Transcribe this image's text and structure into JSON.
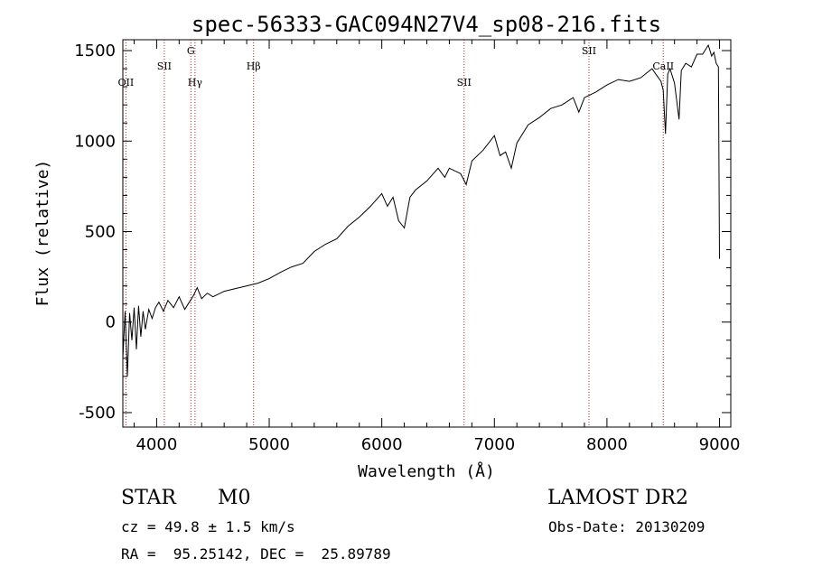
{
  "chart_data": {
    "type": "line",
    "title": "spec-56333-GAC094N27V4_sp08-216.fits",
    "xlabel": "Wavelength (Å)",
    "ylabel": "Flux (relative)",
    "xlim": [
      3700,
      9100
    ],
    "ylim": [
      -580,
      1560
    ],
    "xticks": [
      4000,
      5000,
      6000,
      7000,
      8000,
      9000
    ],
    "yticks": [
      -500,
      0,
      500,
      1000,
      1500
    ],
    "grid": false,
    "line_color": "#000000",
    "marker_color": "#b22222",
    "series": [
      {
        "x": [
          3700,
          3720,
          3740,
          3760,
          3780,
          3800,
          3820,
          3840,
          3860,
          3880,
          3900,
          3930,
          3960,
          3990,
          4020,
          4060,
          4100,
          4150,
          4200,
          4250,
          4300,
          4330,
          4360,
          4400,
          4450,
          4500,
          4600,
          4700,
          4800,
          4900,
          5000,
          5100,
          5200,
          5300,
          5400,
          5500,
          5600,
          5700,
          5800,
          5900,
          6000,
          6050,
          6100,
          6150,
          6200,
          6250,
          6300,
          6400,
          6500,
          6560,
          6600,
          6700,
          6750,
          6800,
          6900,
          7000,
          7050,
          7100,
          7150,
          7200,
          7300,
          7400,
          7500,
          7600,
          7700,
          7750,
          7800,
          7900,
          8000,
          8100,
          8200,
          8300,
          8400,
          8480,
          8500,
          8520,
          8540,
          8560,
          8600,
          8640,
          8660,
          8700,
          8750,
          8800,
          8850,
          8900,
          8930,
          8950,
          8970,
          8990,
          9000
        ],
        "y": [
          -200,
          60,
          -300,
          50,
          -100,
          80,
          -150,
          90,
          -80,
          60,
          -40,
          70,
          20,
          80,
          110,
          60,
          120,
          80,
          140,
          70,
          120,
          150,
          190,
          130,
          160,
          140,
          170,
          185,
          200,
          215,
          240,
          275,
          305,
          325,
          390,
          430,
          460,
          530,
          580,
          640,
          710,
          640,
          690,
          560,
          520,
          690,
          730,
          780,
          850,
          800,
          850,
          820,
          760,
          890,
          950,
          1030,
          920,
          940,
          850,
          990,
          1090,
          1130,
          1180,
          1200,
          1240,
          1160,
          1240,
          1270,
          1310,
          1340,
          1330,
          1350,
          1400,
          1330,
          1280,
          1040,
          1370,
          1400,
          1320,
          1120,
          1390,
          1430,
          1410,
          1480,
          1480,
          1530,
          1470,
          1490,
          1430,
          1410,
          350
        ]
      }
    ],
    "lines": [
      {
        "label": "OII",
        "x": 3727,
        "row": 3
      },
      {
        "label": "SII",
        "x": 4068,
        "row": 2
      },
      {
        "label": "G",
        "x": 4304,
        "row": 1
      },
      {
        "label": "Hγ",
        "x": 4341,
        "row": 3
      },
      {
        "label": "Hβ",
        "x": 4861,
        "row": 2
      },
      {
        "label": "SII",
        "x": 6731,
        "row": 3
      },
      {
        "label": "SII",
        "x": 7840,
        "row": 1
      },
      {
        "label": "CaII",
        "x": 8500,
        "row": 2
      }
    ]
  },
  "info": {
    "object_class": "STAR",
    "subclass": "M0",
    "survey": "LAMOST DR2",
    "cz": "cz = 49.8 ± 1.5 km/s",
    "obs_date": "Obs-Date: 20130209",
    "coords": "RA =  95.25142, DEC =  25.89789"
  }
}
